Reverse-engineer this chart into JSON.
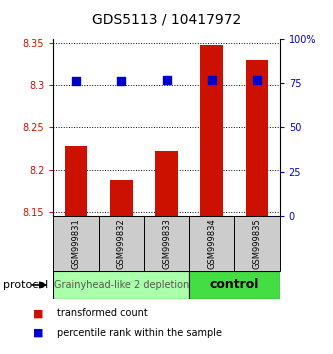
{
  "title": "GDS5113 / 10417972",
  "samples": [
    "GSM999831",
    "GSM999832",
    "GSM999833",
    "GSM999834",
    "GSM999835"
  ],
  "red_values": [
    8.228,
    8.188,
    8.222,
    8.348,
    8.33
  ],
  "blue_values": [
    76,
    76,
    77,
    77,
    77
  ],
  "ylim_left": [
    8.145,
    8.355
  ],
  "ylim_right": [
    0,
    100
  ],
  "yticks_left": [
    8.15,
    8.2,
    8.25,
    8.3,
    8.35
  ],
  "yticks_right": [
    0,
    25,
    50,
    75,
    100
  ],
  "ytick_labels_left": [
    "8.15",
    "8.2",
    "8.25",
    "8.3",
    "8.35"
  ],
  "ytick_labels_right": [
    "0",
    "25",
    "50",
    "75",
    "100%"
  ],
  "bar_width": 0.5,
  "bar_color": "#cc1100",
  "dot_color": "#0000cc",
  "dot_size": 30,
  "groups": [
    {
      "label": "Grainyhead-like 2 depletion",
      "indices": [
        0,
        1,
        2
      ],
      "color": "#aaffaa",
      "text_size": 7
    },
    {
      "label": "control",
      "indices": [
        3,
        4
      ],
      "color": "#44dd44",
      "text_size": 9
    }
  ],
  "protocol_label": "protocol",
  "legend_items": [
    {
      "color": "#cc1100",
      "label": "transformed count"
    },
    {
      "color": "#0000cc",
      "label": "percentile rank within the sample"
    }
  ],
  "grid_style": "dotted",
  "grid_color": "#000000",
  "background_color": "#ffffff",
  "label_box_color": "#cccccc",
  "bar_baseline": 8.145
}
